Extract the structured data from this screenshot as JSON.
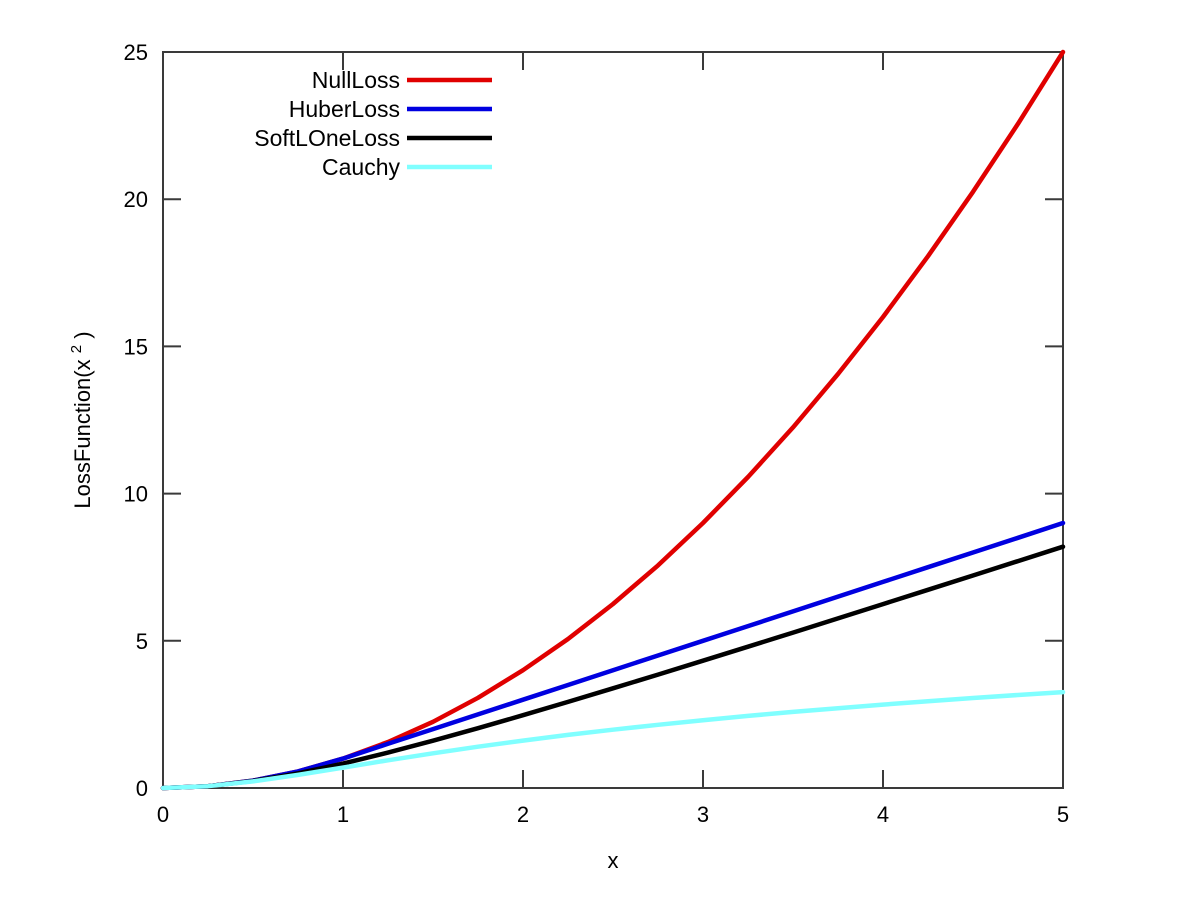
{
  "chart_data": {
    "type": "line",
    "title": "",
    "xlabel": "x",
    "ylabel": "LossFunction(x²)",
    "ylabel_parts": {
      "main": "LossFunction(x",
      "sup": "2",
      "close": ")"
    },
    "xlim": [
      0,
      5
    ],
    "ylim": [
      0,
      25
    ],
    "x_ticks": [
      0,
      1,
      2,
      3,
      4,
      5
    ],
    "y_ticks": [
      0,
      5,
      10,
      15,
      20,
      25
    ],
    "grid": false,
    "legend_position": "top-left-inside",
    "axis_color": "#3a3a3a",
    "text_color": "#000000",
    "background_color": "#ffffff",
    "x": [
      0,
      0.25,
      0.5,
      0.75,
      1,
      1.25,
      1.5,
      1.75,
      2,
      2.25,
      2.5,
      2.75,
      3,
      3.25,
      3.5,
      3.75,
      4,
      4.25,
      4.5,
      4.75,
      5
    ],
    "series": [
      {
        "name": "NullLoss",
        "color": "#e00000",
        "values": [
          0,
          0.0625,
          0.25,
          0.5625,
          1,
          1.5625,
          2.25,
          3.0625,
          4,
          5.0625,
          6.25,
          7.5625,
          9,
          10.5625,
          12.25,
          14.0625,
          16,
          18.0625,
          20.25,
          22.5625,
          25
        ]
      },
      {
        "name": "HuberLoss",
        "color": "#0000e0",
        "values": [
          0,
          0.0625,
          0.25,
          0.5625,
          1,
          1.5,
          2,
          2.5,
          3,
          3.5,
          4,
          4.5,
          5,
          5.5,
          6,
          6.5,
          7,
          7.5,
          8,
          8.5,
          9
        ]
      },
      {
        "name": "SoftLOneLoss",
        "color": "#000000",
        "values": [
          0,
          0.0616,
          0.2361,
          0.5,
          0.8284,
          1.2016,
          1.6056,
          2.0311,
          2.4721,
          2.9244,
          3.3852,
          3.8523,
          4.3246,
          4.8007,
          5.2801,
          5.7621,
          6.2462,
          6.7321,
          7.2195,
          7.7082,
          8.198
        ]
      },
      {
        "name": "Cauchy",
        "color": "#80ffff",
        "values": [
          0,
          0.0606,
          0.2231,
          0.4463,
          0.6931,
          0.941,
          1.1787,
          1.4018,
          1.6094,
          1.8021,
          1.981,
          2.1474,
          2.3026,
          2.4478,
          2.584,
          2.7122,
          2.8332,
          2.9477,
          3.0564,
          3.1597,
          3.2581
        ]
      }
    ]
  }
}
